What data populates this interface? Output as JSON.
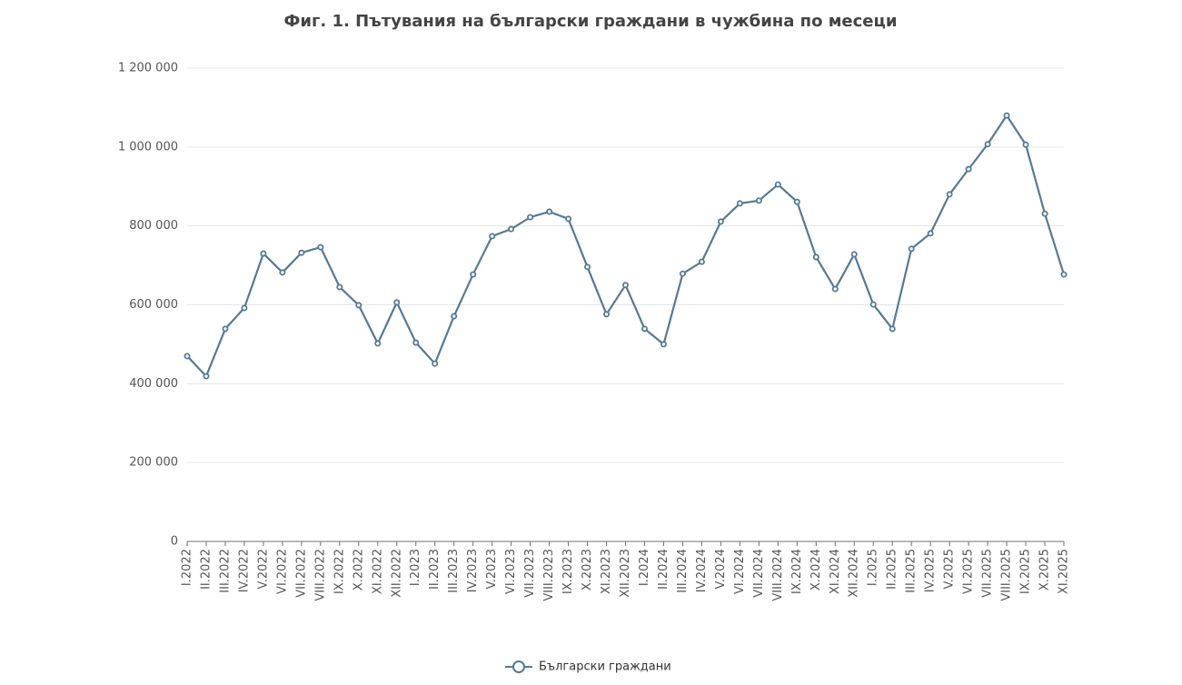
{
  "chart_data": {
    "type": "line",
    "title": "Фиг. 1. Пътувания на български граждани в чужбина по месеци",
    "categories": [
      "I.2022",
      "II.2022",
      "III.2022",
      "IV.2022",
      "V.2022",
      "VI.2022",
      "VII.2022",
      "VIII.2022",
      "IX.2022",
      "X.2022",
      "XI.2022",
      "XII.2022",
      "I.2023",
      "II.2023",
      "III.2023",
      "IV.2023",
      "V.2023",
      "VI.2023",
      "VII.2023",
      "VIII.2023",
      "IX.2023",
      "X.2023",
      "XI.2023",
      "XII.2023",
      "I.2024",
      "II.2024",
      "III.2024",
      "IV.2024",
      "V.2024",
      "VI.2024",
      "VII.2024",
      "VIII.2024",
      "IX.2024",
      "X.2024",
      "XI.2024",
      "XII.2024",
      "I.2025",
      "II.2025",
      "III.2025",
      "IV.2025",
      "V.2025",
      "VI.2025",
      "VII.2025",
      "VIII.2025",
      "IX.2025",
      "X.2025",
      "XI.2025"
    ],
    "series": [
      {
        "name": "Български граждани",
        "color": "#557a95",
        "values": [
          470000,
          419000,
          539000,
          592000,
          730000,
          682000,
          732000,
          746000,
          645000,
          599000,
          502000,
          606000,
          504000,
          451000,
          571000,
          677000,
          774000,
          792000,
          822000,
          836000,
          818000,
          696000,
          576000,
          650000,
          539000,
          500000,
          679000,
          709000,
          811000,
          857000,
          864000,
          905000,
          861000,
          721000,
          640000,
          728000,
          601000,
          539000,
          742000,
          781000,
          880000,
          944000,
          1007000,
          1080000,
          1006000,
          831000,
          677000
        ]
      }
    ],
    "ylim": [
      0,
      1200000
    ],
    "yticks": [
      0,
      {
        "value": 200000,
        "label": "200 000"
      },
      {
        "value": 400000,
        "label": "400 000"
      },
      {
        "value": 600000,
        "label": "600 000"
      },
      {
        "value": 800000,
        "label": "800 000"
      },
      {
        "value": 1000000,
        "label": "1 000 000"
      },
      {
        "value": 1200000,
        "label": "1 200 000"
      }
    ],
    "grid": true
  }
}
